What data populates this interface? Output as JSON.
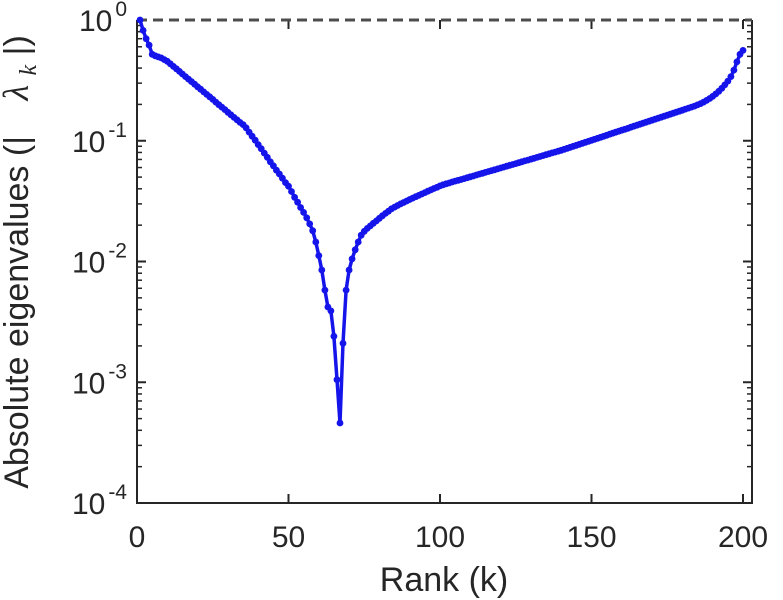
{
  "figure": {
    "background": "#ffffff",
    "text_color": "#262626",
    "axis_color": "#262626",
    "curve_color": "#1414eb",
    "dash_color": "#4d4d4d"
  },
  "labels": {
    "xlabel": "Rank (k)",
    "ylabel_prefix": "Absolute eigenvalues (|",
    "ylabel_symbol": "λ",
    "ylabel_subscript": "k",
    "ylabel_suffix": "|)"
  },
  "chart_data": {
    "type": "line",
    "title": "",
    "xlabel": "Rank (k)",
    "ylabel": "Absolute eigenvalues (|λ_k|)",
    "xscale": "linear",
    "yscale": "log",
    "xlim": [
      0,
      203
    ],
    "ylim": [
      0.0001,
      1.0
    ],
    "x_ticks": [
      0,
      50,
      100,
      150,
      200
    ],
    "y_ticks": [
      1.0,
      0.1,
      0.01,
      0.001,
      0.0001
    ],
    "y_tick_exponents": [
      "0",
      "-1",
      "-2",
      "-3",
      "-4"
    ],
    "grid": false,
    "legend": null,
    "marker": "circle",
    "reference_line": {
      "y": 1.0,
      "style": "dashed",
      "color": "#4d4d4d"
    },
    "series": [
      {
        "name": "absolute-eigenvalues",
        "color": "#1414eb",
        "x_start": 1,
        "x_step": 1,
        "y": [
          1.0,
          0.82,
          0.7,
          0.62,
          0.52,
          0.505,
          0.495,
          0.485,
          0.47,
          0.455,
          0.434,
          0.413,
          0.394,
          0.375,
          0.357,
          0.34,
          0.324,
          0.309,
          0.294,
          0.28,
          0.267,
          0.254,
          0.242,
          0.231,
          0.22,
          0.209,
          0.199,
          0.19,
          0.181,
          0.172,
          0.164,
          0.156,
          0.149,
          0.142,
          0.136,
          0.128,
          0.118,
          0.109,
          0.101,
          0.093,
          0.086,
          0.079,
          0.073,
          0.067,
          0.062,
          0.057,
          0.053,
          0.049,
          0.045,
          0.042,
          0.038,
          0.034,
          0.031,
          0.028,
          0.0255,
          0.023,
          0.0205,
          0.018,
          0.0145,
          0.0112,
          0.0085,
          0.0058,
          0.0042,
          0.0039,
          0.0024,
          0.00105,
          0.00046,
          0.0021,
          0.0058,
          0.0085,
          0.0105,
          0.0125,
          0.0145,
          0.0165,
          0.0178,
          0.0188,
          0.0197,
          0.0207,
          0.0217,
          0.0228,
          0.0239,
          0.025,
          0.0261,
          0.0273,
          0.0282,
          0.0291,
          0.03,
          0.0308,
          0.0317,
          0.0326,
          0.0335,
          0.0344,
          0.0353,
          0.0362,
          0.0372,
          0.0382,
          0.0392,
          0.0402,
          0.0412,
          0.0423,
          0.0432,
          0.044,
          0.0447,
          0.0455,
          0.0463,
          0.047,
          0.0478,
          0.0486,
          0.0494,
          0.0503,
          0.0511,
          0.052,
          0.0529,
          0.0538,
          0.0547,
          0.0556,
          0.0566,
          0.0575,
          0.0585,
          0.0595,
          0.0605,
          0.0615,
          0.0626,
          0.0636,
          0.0647,
          0.0658,
          0.0669,
          0.0681,
          0.0692,
          0.0704,
          0.0716,
          0.0728,
          0.0741,
          0.0753,
          0.0766,
          0.0779,
          0.0793,
          0.0806,
          0.082,
          0.0834,
          0.085,
          0.0866,
          0.0883,
          0.09,
          0.0917,
          0.0935,
          0.0953,
          0.0971,
          0.099,
          0.1009,
          0.1029,
          0.1048,
          0.1069,
          0.1089,
          0.111,
          0.1132,
          0.1154,
          0.1176,
          0.1199,
          0.1222,
          0.1245,
          0.1269,
          0.1294,
          0.1319,
          0.1344,
          0.137,
          0.1397,
          0.1424,
          0.1451,
          0.1479,
          0.1508,
          0.1537,
          0.1567,
          0.1597,
          0.1628,
          0.166,
          0.1692,
          0.1724,
          0.1758,
          0.1792,
          0.1827,
          0.1862,
          0.1898,
          0.1935,
          0.198,
          0.203,
          0.209,
          0.216,
          0.224,
          0.233,
          0.244,
          0.257,
          0.272,
          0.29,
          0.312,
          0.34,
          0.385,
          0.45,
          0.52,
          0.56
        ]
      }
    ]
  }
}
